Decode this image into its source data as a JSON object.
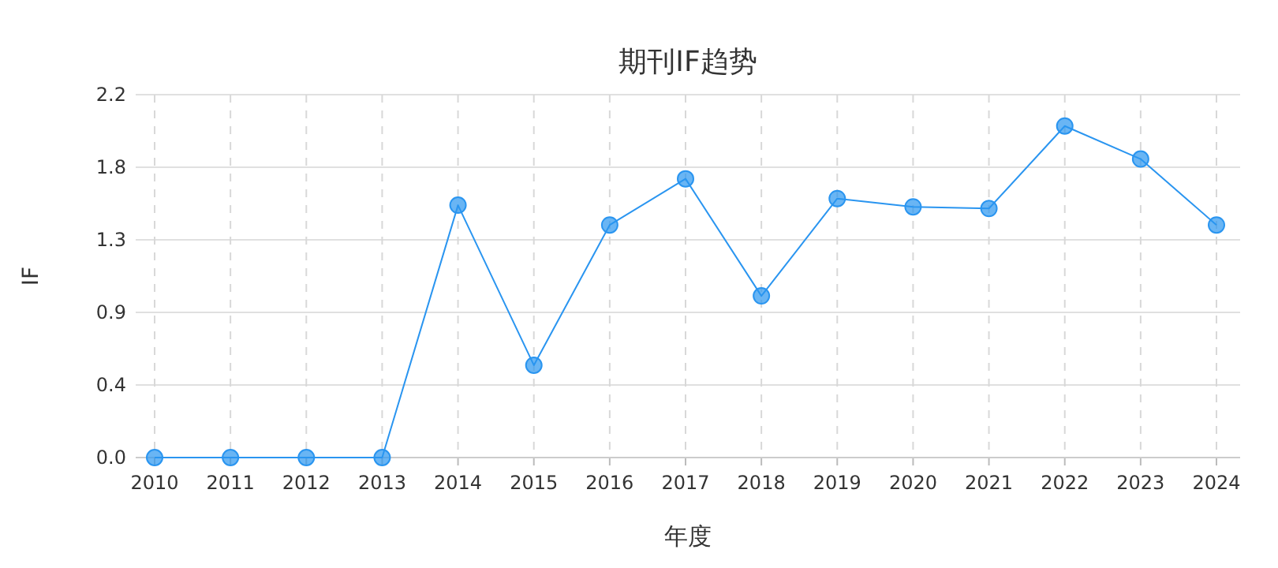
{
  "chart_data": {
    "type": "line",
    "title": "期刊IF趋势",
    "xlabel": "年度",
    "ylabel": "IF",
    "categories": [
      "2010",
      "2011",
      "2012",
      "2013",
      "2014",
      "2015",
      "2016",
      "2017",
      "2018",
      "2019",
      "2020",
      "2021",
      "2022",
      "2023",
      "2024"
    ],
    "series": [
      {
        "color": "#2a95f0",
        "values": [
          0,
          0,
          0,
          0,
          1.53,
          0.56,
          1.41,
          1.69,
          0.98,
          1.57,
          1.52,
          1.51,
          2.01,
          1.81,
          1.41
        ]
      }
    ],
    "ylim": [
      0,
      2.2
    ],
    "yticks": [
      {
        "value": 0,
        "label": "0.0"
      },
      {
        "value": 0.44,
        "label": "0.4"
      },
      {
        "value": 0.88,
        "label": "0.9"
      },
      {
        "value": 1.32,
        "label": "1.3"
      },
      {
        "value": 1.76,
        "label": "1.8"
      },
      {
        "value": 2.2,
        "label": "2.2"
      }
    ],
    "grid": true,
    "marker": "circle",
    "line_style": "solid"
  }
}
